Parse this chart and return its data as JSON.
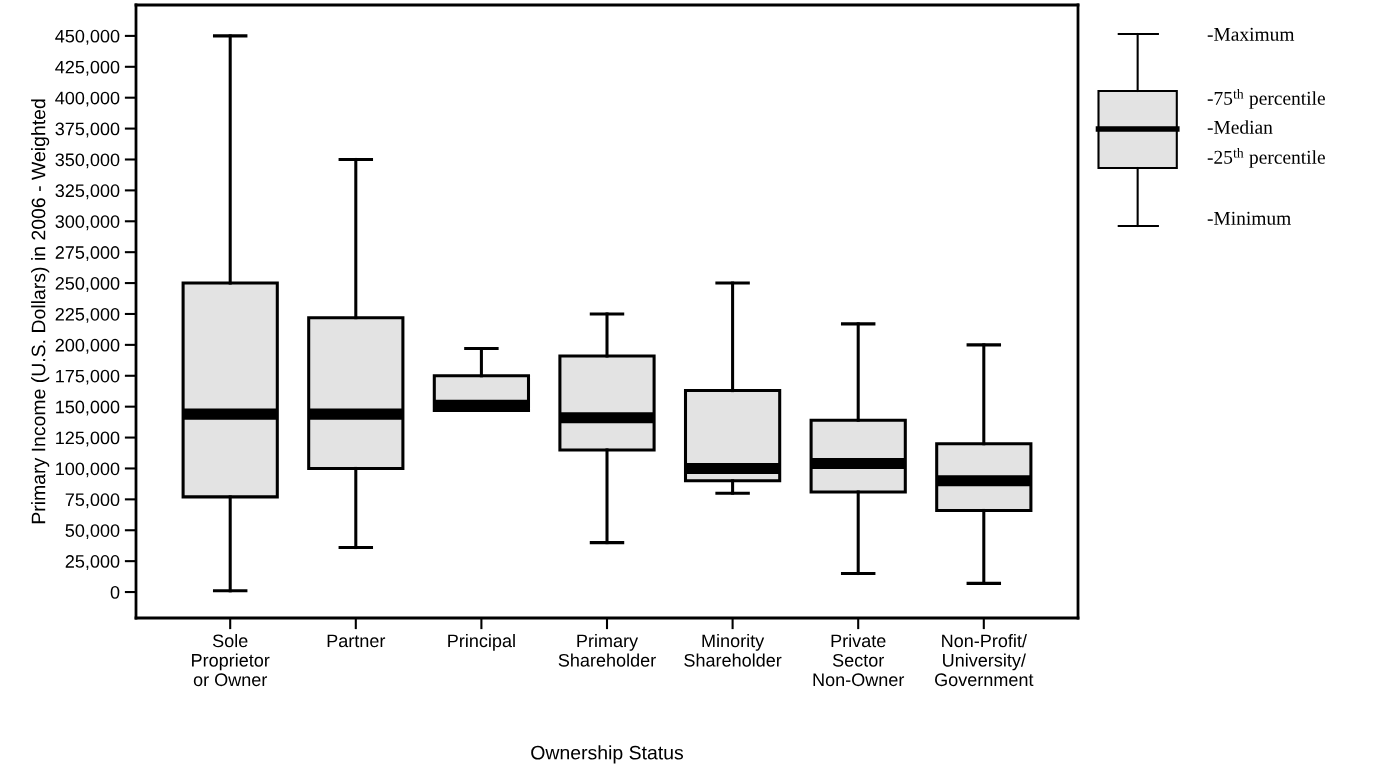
{
  "chart_data": {
    "type": "box",
    "xlabel": "Ownership Status",
    "ylabel": "Primary Income (U.S. Dollars) in 2006 - Weighted",
    "categories": [
      "Sole\nProprietor\nor Owner",
      "Partner",
      "Principal",
      "Primary\nShareholder",
      "Minority\nShareholder",
      "Private\nSector\nNon-Owner",
      "Non-Profit/\nUniversity/\nGovernment"
    ],
    "color": "#e3e3e3",
    "boxes": [
      {
        "low": 1000,
        "q1": 77000,
        "median": 144000,
        "q3": 250000,
        "high": 450000
      },
      {
        "low": 36000,
        "q1": 100000,
        "median": 144000,
        "q3": 222000,
        "high": 350000
      },
      {
        "low": 147000,
        "q1": 147000,
        "median": 151000,
        "q3": 175000,
        "high": 197000
      },
      {
        "low": 40000,
        "q1": 115000,
        "median": 141000,
        "q3": 191000,
        "high": 225000
      },
      {
        "low": 80000,
        "q1": 90000,
        "median": 100000,
        "q3": 163000,
        "high": 250000
      },
      {
        "low": 15000,
        "q1": 81000,
        "median": 104000,
        "q3": 139000,
        "high": 217000
      },
      {
        "low": 7000,
        "q1": 66000,
        "median": 90000,
        "q3": 120000,
        "high": 200000
      }
    ],
    "ylim": [
      -21000,
      475000
    ],
    "yticks": [
      {
        "value": 0,
        "label": "0"
      },
      {
        "value": 25000,
        "label": "25,000"
      },
      {
        "value": 50000,
        "label": "50,000"
      },
      {
        "value": 75000,
        "label": "75,000"
      },
      {
        "value": 100000,
        "label": "100,000"
      },
      {
        "value": 125000,
        "label": "125,000"
      },
      {
        "value": 150000,
        "label": "150,000"
      },
      {
        "value": 175000,
        "label": "175,000"
      },
      {
        "value": 200000,
        "label": "200,000"
      },
      {
        "value": 225000,
        "label": "225,000"
      },
      {
        "value": 250000,
        "label": "250,000"
      },
      {
        "value": 275000,
        "label": "275,000"
      },
      {
        "value": 300000,
        "label": "300,000"
      },
      {
        "value": 325000,
        "label": "325,000"
      },
      {
        "value": 350000,
        "label": "350,000"
      },
      {
        "value": 375000,
        "label": "375,000"
      },
      {
        "value": 400000,
        "label": "400,000"
      },
      {
        "value": 425000,
        "label": "425,000"
      },
      {
        "value": 450000,
        "label": "450,000"
      }
    ],
    "annotations": [
      "-Maximum",
      "-75$^{th}$ percentile",
      "-Median",
      "-25$^{th}$ percentile",
      "-Minimum"
    ]
  }
}
